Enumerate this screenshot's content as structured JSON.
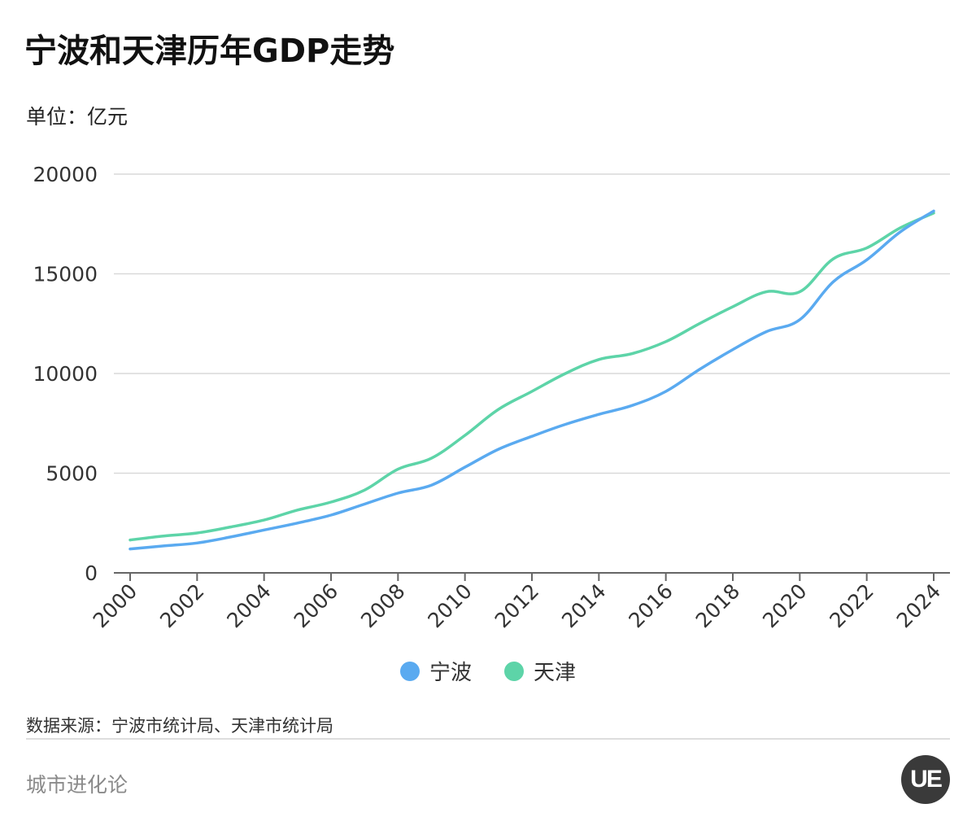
{
  "page": {
    "title": "宁波和天津历年GDP走势",
    "unit": "单位：亿元",
    "source": "数据来源：宁波市统计局、天津市统计局",
    "brand": "城市进化论",
    "logo_text": "UE"
  },
  "chart_data": {
    "type": "line",
    "title": "宁波和天津历年GDP走势",
    "ylabel": "亿元",
    "xlabel": "",
    "ylim": [
      0,
      20000
    ],
    "yticks": [
      0,
      5000,
      10000,
      15000,
      20000
    ],
    "xticks": [
      "2000",
      "2002",
      "2004",
      "2006",
      "2008",
      "2010",
      "2012",
      "2014",
      "2016",
      "2018",
      "2020",
      "2022",
      "2024"
    ],
    "x": [
      2000,
      2001,
      2002,
      2003,
      2004,
      2005,
      2006,
      2007,
      2008,
      2009,
      2010,
      2011,
      2012,
      2013,
      2014,
      2015,
      2016,
      2017,
      2018,
      2019,
      2020,
      2021,
      2022,
      2023,
      2024
    ],
    "legend_position": "bottom",
    "grid": true,
    "series": [
      {
        "name": "宁波",
        "color": "#5aaaf0",
        "values": [
          1200,
          1350,
          1500,
          1800,
          2150,
          2500,
          2900,
          3450,
          4000,
          4400,
          5300,
          6200,
          6850,
          7450,
          7950,
          8400,
          9100,
          10200,
          11200,
          12100,
          12700,
          14600,
          15700,
          17100,
          18150
        ]
      },
      {
        "name": "天津",
        "color": "#5dd4a8",
        "values": [
          1650,
          1850,
          2000,
          2300,
          2650,
          3150,
          3550,
          4150,
          5200,
          5750,
          6900,
          8200,
          9100,
          10000,
          10700,
          11000,
          11600,
          12500,
          13350,
          14100,
          14100,
          15750,
          16300,
          17300,
          18050
        ]
      }
    ]
  }
}
